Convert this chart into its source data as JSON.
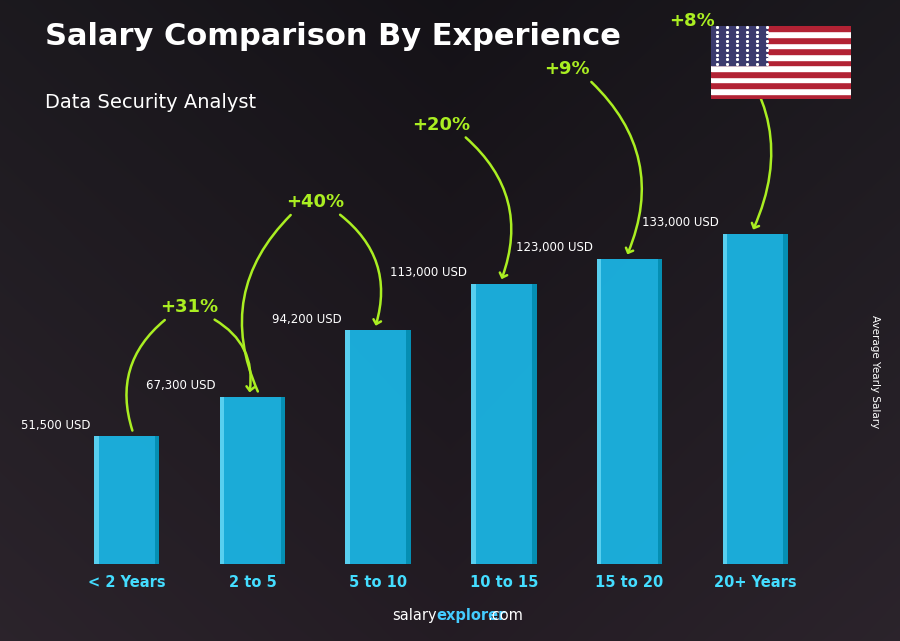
{
  "title": "Salary Comparison By Experience",
  "subtitle": "Data Security Analyst",
  "categories": [
    "< 2 Years",
    "2 to 5",
    "5 to 10",
    "10 to 15",
    "15 to 20",
    "20+ Years"
  ],
  "values": [
    51500,
    67300,
    94200,
    113000,
    123000,
    133000
  ],
  "value_labels": [
    "51,500 USD",
    "67,300 USD",
    "94,200 USD",
    "113,000 USD",
    "123,000 USD",
    "133,000 USD"
  ],
  "pct_labels": [
    "+31%",
    "+40%",
    "+20%",
    "+9%",
    "+8%"
  ],
  "bar_color_main": "#1BB8E8",
  "bar_color_light": "#6DDCF8",
  "bar_color_dark": "#0088AA",
  "pct_color": "#AAEE22",
  "value_label_color": "#FFFFFF",
  "title_color": "#FFFFFF",
  "subtitle_color": "#FFFFFF",
  "xticklabel_color": "#44DDFF",
  "footer_salary_color": "#FFFFFF",
  "footer_explorer_color": "#44CCFF",
  "ylabel_text": "Average Yearly Salary",
  "ylabel_color": "#FFFFFF",
  "ylim": [
    0,
    155000
  ],
  "figsize": [
    9.0,
    6.41
  ]
}
